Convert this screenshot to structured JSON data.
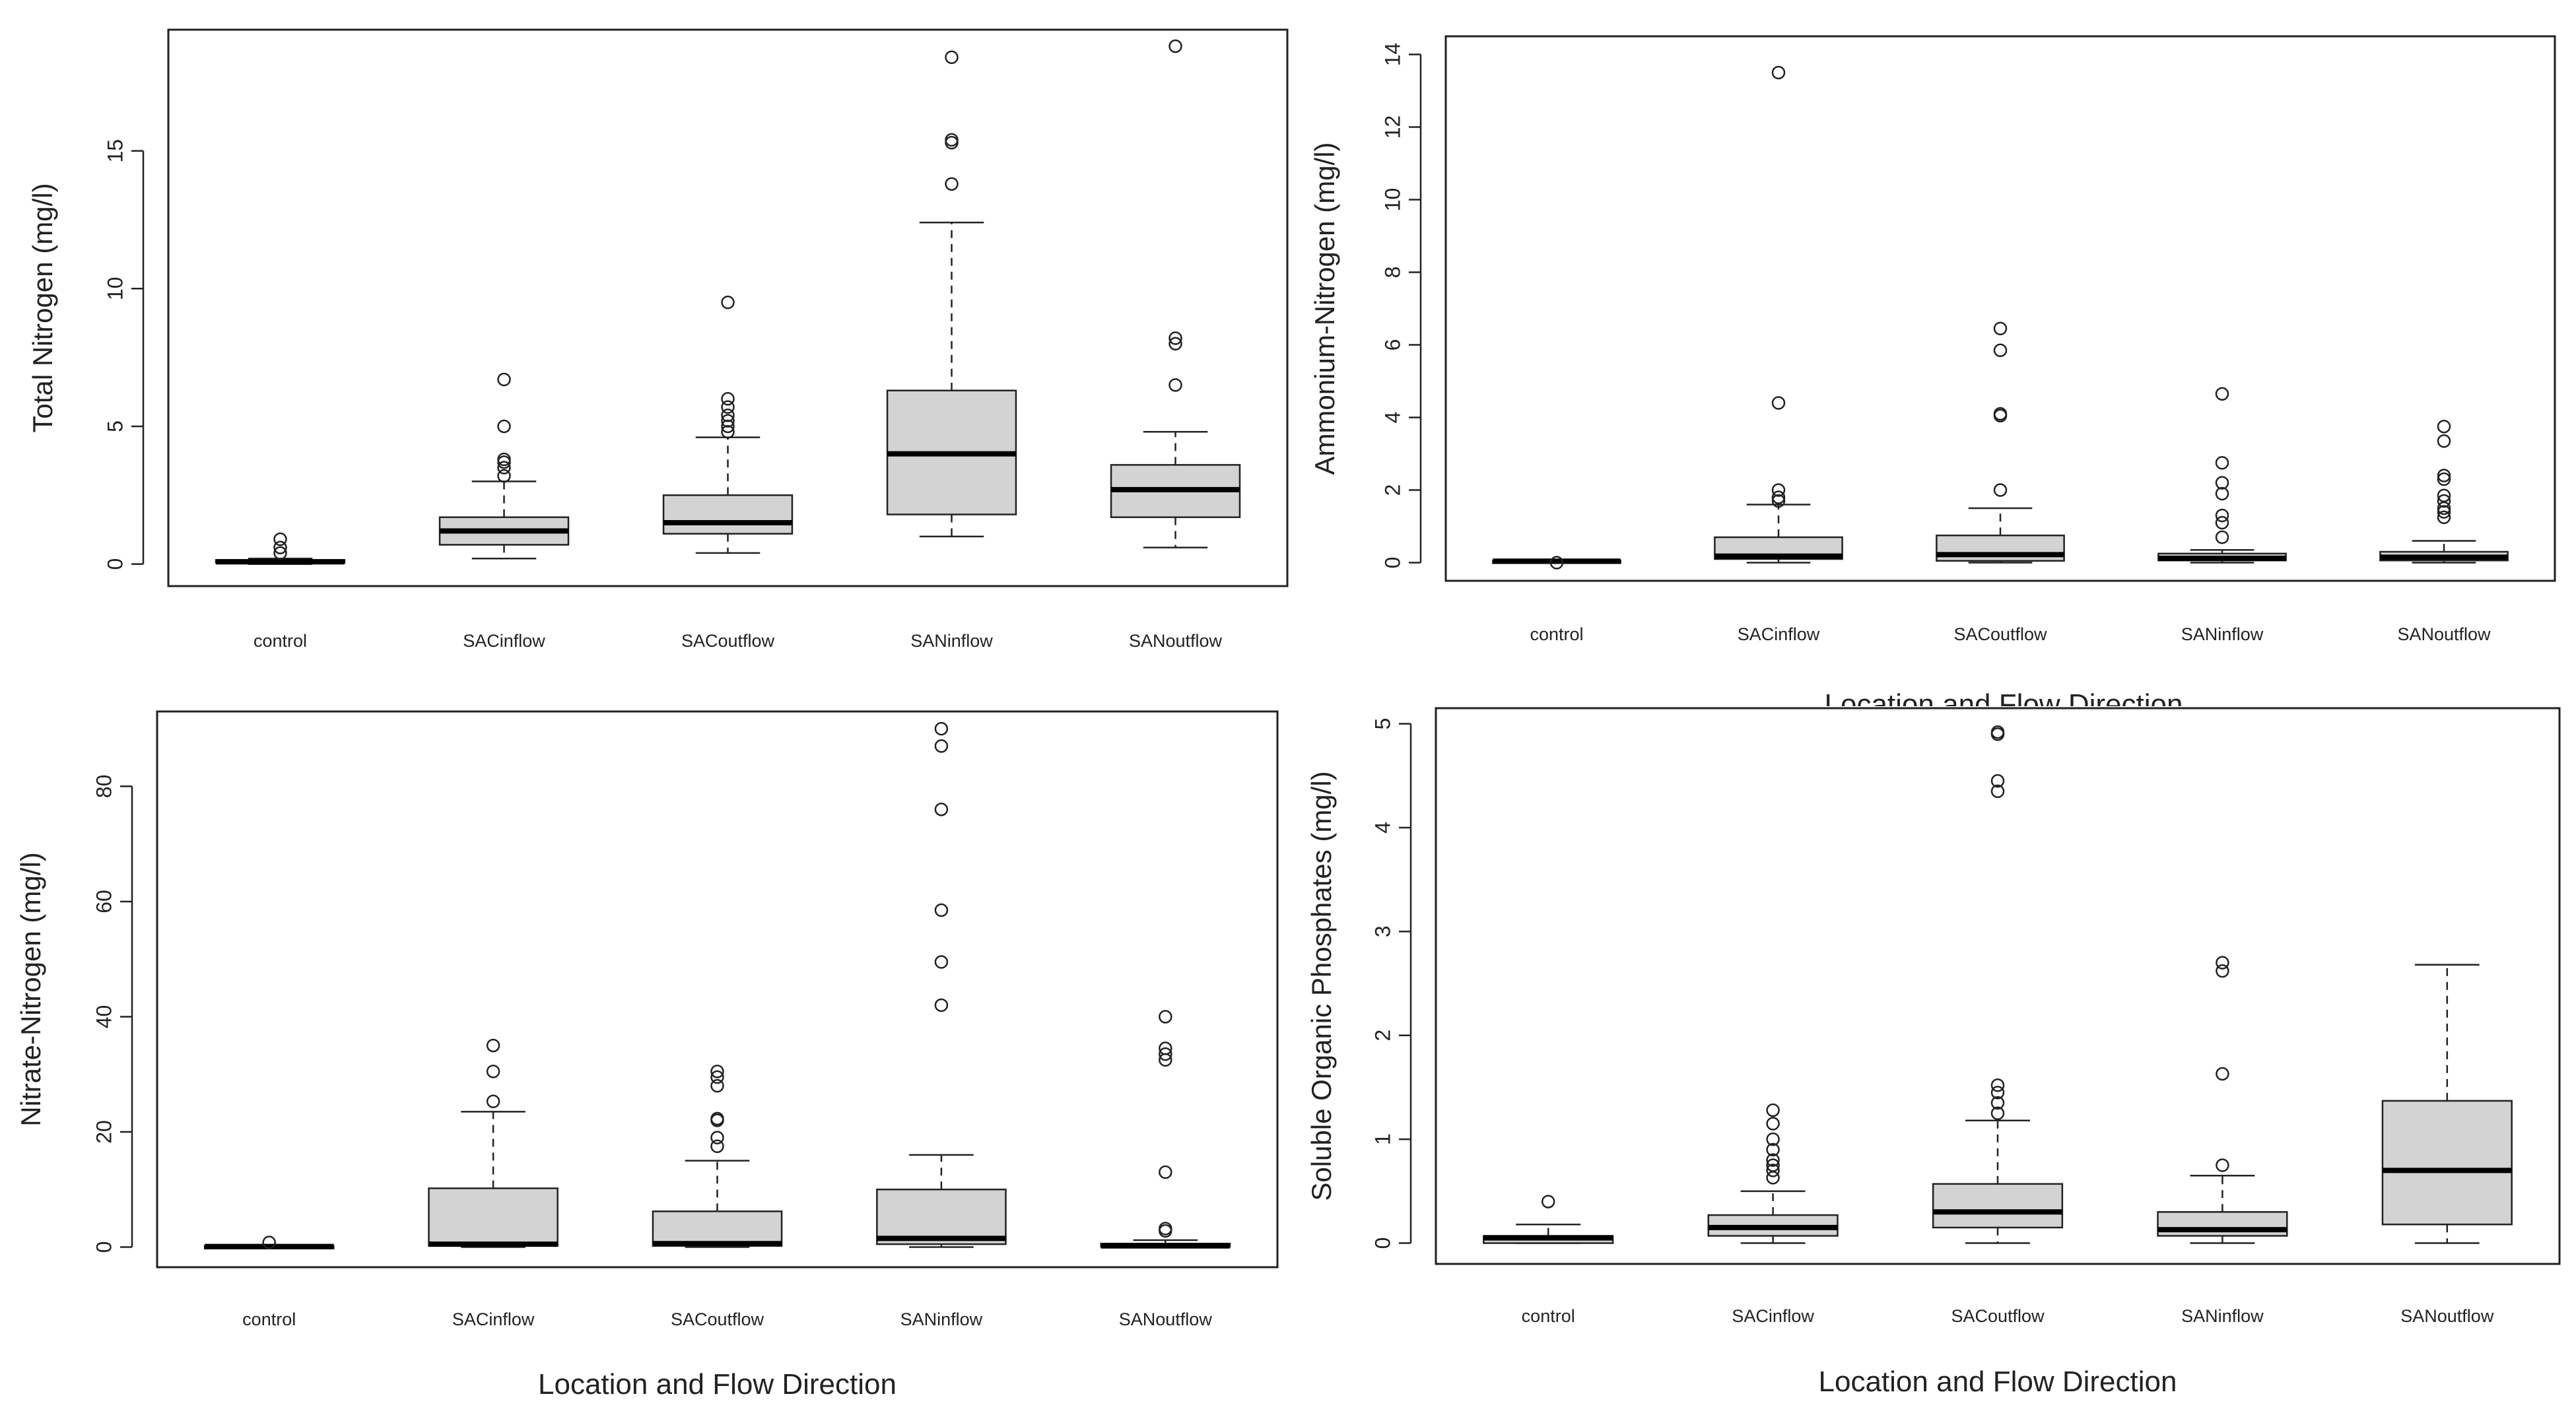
{
  "chart_data": [
    {
      "type": "boxplot",
      "ylabel": "Total Nitrogen (mg/l)",
      "xlabel": "",
      "ylim": [
        -0.8,
        19.4
      ],
      "yticks": [
        0,
        5,
        10,
        15
      ],
      "categories": [
        "control",
        "SACinflow",
        "SACoutflow",
        "SANinflow",
        "SANoutflow"
      ],
      "boxes": [
        {
          "min": 0.0,
          "q1": 0.05,
          "median": 0.08,
          "q3": 0.15,
          "max": 0.2,
          "outliers": [
            0.4,
            0.6,
            0.9
          ]
        },
        {
          "min": 0.2,
          "q1": 0.7,
          "median": 1.2,
          "q3": 1.7,
          "max": 3.0,
          "outliers": [
            3.2,
            3.5,
            3.7,
            3.8,
            5.0,
            6.7
          ]
        },
        {
          "min": 0.4,
          "q1": 1.1,
          "median": 1.5,
          "q3": 2.5,
          "max": 4.6,
          "outliers": [
            4.8,
            5.0,
            5.2,
            5.4,
            5.7,
            6.0,
            9.5
          ]
        },
        {
          "min": 1.0,
          "q1": 1.8,
          "median": 4.0,
          "q3": 6.3,
          "max": 12.4,
          "outliers": [
            13.8,
            15.3,
            15.4,
            18.4
          ]
        },
        {
          "min": 0.6,
          "q1": 1.7,
          "median": 2.7,
          "q3": 3.6,
          "max": 4.8,
          "outliers": [
            6.5,
            8.0,
            8.2,
            18.8
          ]
        }
      ]
    },
    {
      "type": "boxplot",
      "ylabel": "Ammonium-Nitrogen (mg/l)",
      "xlabel": "Location and Flow Direction",
      "ylim": [
        -0.5,
        14.5
      ],
      "yticks": [
        0,
        2,
        4,
        6,
        8,
        10,
        12,
        14
      ],
      "categories": [
        "control",
        "SACinflow",
        "SACoutflow",
        "SANinflow",
        "SANoutflow"
      ],
      "boxes": [
        {
          "min": 0.0,
          "q1": 0.02,
          "median": 0.04,
          "q3": 0.06,
          "max": 0.08,
          "outliers": [
            0.0
          ]
        },
        {
          "min": 0.0,
          "q1": 0.1,
          "median": 0.18,
          "q3": 0.7,
          "max": 1.6,
          "outliers": [
            1.7,
            1.8,
            2.0,
            4.4,
            13.5
          ]
        },
        {
          "min": 0.0,
          "q1": 0.05,
          "median": 0.22,
          "q3": 0.75,
          "max": 1.5,
          "outliers": [
            2.0,
            4.05,
            4.1,
            5.85,
            6.45
          ]
        },
        {
          "min": 0.0,
          "q1": 0.06,
          "median": 0.12,
          "q3": 0.25,
          "max": 0.35,
          "outliers": [
            0.7,
            1.1,
            1.3,
            1.9,
            2.2,
            2.75,
            4.65
          ]
        },
        {
          "min": 0.0,
          "q1": 0.06,
          "median": 0.15,
          "q3": 0.3,
          "max": 0.6,
          "outliers": [
            1.25,
            1.4,
            1.5,
            1.7,
            1.85,
            2.3,
            2.4,
            3.35,
            3.75
          ]
        }
      ]
    },
    {
      "type": "boxplot",
      "ylabel": "Nitrate-Nitrogen (mg/l)",
      "xlabel": "Location and Flow Direction",
      "ylim": [
        -3.5,
        93
      ],
      "yticks": [
        0,
        20,
        40,
        60,
        80
      ],
      "categories": [
        "control",
        "SACinflow",
        "SACoutflow",
        "SANinflow",
        "SANoutflow"
      ],
      "boxes": [
        {
          "min": 0.0,
          "q1": 0.0,
          "median": 0.1,
          "q3": 0.2,
          "max": 0.3,
          "outliers": [
            0.8
          ]
        },
        {
          "min": 0.0,
          "q1": 0.2,
          "median": 0.5,
          "q3": 10.2,
          "max": 23.5,
          "outliers": [
            25.3,
            30.5,
            35.0
          ]
        },
        {
          "min": 0.0,
          "q1": 0.2,
          "median": 0.6,
          "q3": 6.2,
          "max": 15.0,
          "outliers": [
            17.5,
            19.0,
            22.0,
            22.3,
            28.0,
            29.5,
            30.5
          ]
        },
        {
          "min": 0.0,
          "q1": 0.5,
          "median": 1.5,
          "q3": 10.0,
          "max": 16.0,
          "outliers": [
            42.0,
            49.5,
            58.5,
            76.0,
            87.0,
            90.0
          ]
        },
        {
          "min": 0.0,
          "q1": 0.05,
          "median": 0.2,
          "q3": 0.6,
          "max": 1.2,
          "outliers": [
            2.8,
            3.2,
            13.0,
            32.5,
            33.5,
            34.5,
            40.0
          ]
        }
      ]
    },
    {
      "type": "boxplot",
      "ylabel": "Soluble Organic Phosphates (mg/l)",
      "xlabel": "Location and Flow Direction",
      "ylim": [
        -0.2,
        5.15
      ],
      "yticks": [
        0,
        1,
        2,
        3,
        4,
        5
      ],
      "categories": [
        "control",
        "SACinflow",
        "SACoutflow",
        "SANinflow",
        "SANoutflow"
      ],
      "boxes": [
        {
          "min": 0.0,
          "q1": 0.0,
          "median": 0.05,
          "q3": 0.07,
          "max": 0.18,
          "outliers": [
            0.4
          ]
        },
        {
          "min": 0.0,
          "q1": 0.07,
          "median": 0.15,
          "q3": 0.27,
          "max": 0.5,
          "outliers": [
            0.63,
            0.7,
            0.75,
            0.8,
            0.9,
            1.0,
            1.15,
            1.28
          ]
        },
        {
          "min": 0.0,
          "q1": 0.15,
          "median": 0.3,
          "q3": 0.57,
          "max": 1.18,
          "outliers": [
            1.25,
            1.35,
            1.45,
            1.52,
            4.35,
            4.45,
            4.9,
            4.92
          ]
        },
        {
          "min": 0.0,
          "q1": 0.07,
          "median": 0.13,
          "q3": 0.3,
          "max": 0.65,
          "outliers": [
            0.75,
            1.63,
            2.62,
            2.7
          ]
        },
        {
          "min": 0.0,
          "q1": 0.18,
          "median": 0.7,
          "q3": 1.37,
          "max": 2.68,
          "outliers": []
        }
      ]
    }
  ],
  "overlap_fragment": "Location and Flow Direction"
}
